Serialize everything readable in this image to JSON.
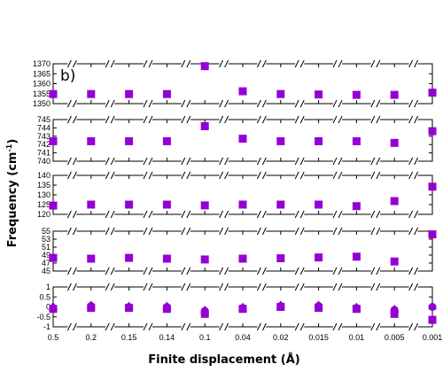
{
  "chart_data": {
    "type": "scatter",
    "panel_label": "b)",
    "xlabel": "Finite displacement (Å)",
    "ylabel_text": "Frequency (cm",
    "ylabel_sup": "-1",
    "ylabel_close": ")",
    "categories": [
      "0.5",
      "0.2",
      "0.15",
      "0.14",
      "0.1",
      "0.04",
      "0.02",
      "0.015",
      "0.01",
      "0.005",
      "0.001"
    ],
    "marker_color": "#9400d3",
    "axis_breaks": true,
    "grid": false,
    "panels": [
      {
        "ylim": [
          1350,
          1370
        ],
        "yticks": [
          "1350",
          "1355",
          "1360",
          "1365",
          "1370"
        ],
        "series": [
          {
            "marker": "square",
            "values": [
              1354.8,
              1354.8,
              1354.8,
              1354.8,
              1368.8,
              1356.2,
              1354.8,
              1354.6,
              1354.4,
              1354.4,
              1355.5
            ]
          }
        ]
      },
      {
        "ylim": [
          740,
          745
        ],
        "yticks": [
          "740",
          "741",
          "742",
          "743",
          "744",
          "745"
        ],
        "series": [
          {
            "marker": "square",
            "values": [
              742.4,
              742.4,
              742.4,
              742.4,
              744.2,
              742.7,
              742.4,
              742.4,
              742.4,
              742.2,
              743.6
            ]
          }
        ]
      },
      {
        "ylim": [
          120,
          140
        ],
        "yticks": [
          "120",
          "125",
          "130",
          "135",
          "140"
        ],
        "series": [
          {
            "marker": "square",
            "values": [
              124.5,
              125,
              125,
              125,
              124.6,
              125,
              125,
              125,
              124.2,
              126.8,
              134.2
            ]
          }
        ]
      },
      {
        "ylim": [
          45,
          55
        ],
        "yticks": [
          "45",
          "47",
          "49",
          "51",
          "53",
          "55"
        ],
        "series": [
          {
            "marker": "square",
            "values": [
              48.3,
              48.1,
              48.3,
              48.1,
              47.9,
              48.1,
              48.2,
              48.4,
              48.6,
              47.4,
              54.2
            ]
          }
        ]
      },
      {
        "ylim": [
          -1,
          1
        ],
        "yticks": [
          "-1",
          "-0.5",
          "0",
          "0.5",
          "1"
        ],
        "series": [
          {
            "marker": "circle",
            "values": [
              -0.05,
              0.05,
              0.0,
              0.0,
              -0.2,
              -0.05,
              0.05,
              0.05,
              -0.05,
              -0.15,
              0.0
            ]
          },
          {
            "marker": "square",
            "values": [
              -0.1,
              -0.05,
              -0.05,
              -0.1,
              -0.35,
              -0.1,
              0.0,
              -0.05,
              -0.1,
              -0.35,
              -0.65
            ]
          },
          {
            "marker": "triangle",
            "values": [
              0.05,
              0.1,
              0.05,
              0.05,
              -0.15,
              0.0,
              0.1,
              0.1,
              0.0,
              -0.1,
              0.05
            ]
          }
        ]
      }
    ]
  }
}
